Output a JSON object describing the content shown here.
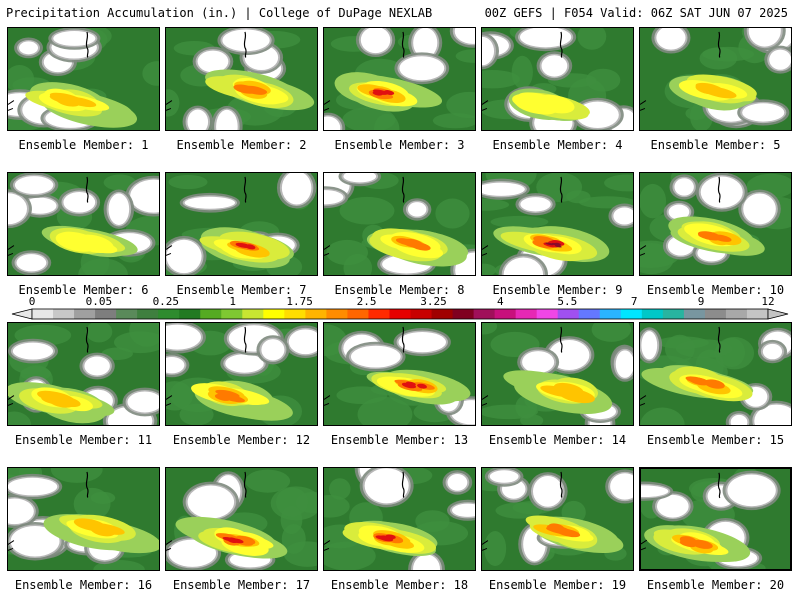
{
  "header": {
    "left": "Precipitation Accumulation (in.) | College of DuPage NEXLAB",
    "right": "00Z GEFS | F054 Valid: 06Z SAT JUN 07 2025"
  },
  "member_label_prefix": "Ensemble Member: ",
  "members": [
    {
      "id": "1",
      "intensity": 2
    },
    {
      "id": "2",
      "intensity": 3
    },
    {
      "id": "3",
      "intensity": 4
    },
    {
      "id": "4",
      "intensity": 1
    },
    {
      "id": "5",
      "intensity": 2
    },
    {
      "id": "6",
      "intensity": 1
    },
    {
      "id": "7",
      "intensity": 4
    },
    {
      "id": "8",
      "intensity": 3
    },
    {
      "id": "9",
      "intensity": 5
    },
    {
      "id": "10",
      "intensity": 3
    },
    {
      "id": "11",
      "intensity": 2
    },
    {
      "id": "12",
      "intensity": 3
    },
    {
      "id": "13",
      "intensity": 4
    },
    {
      "id": "14",
      "intensity": 2
    },
    {
      "id": "15",
      "intensity": 3
    },
    {
      "id": "16",
      "intensity": 2
    },
    {
      "id": "17",
      "intensity": 4
    },
    {
      "id": "18",
      "intensity": 4
    },
    {
      "id": "19",
      "intensity": 3
    },
    {
      "id": "20",
      "intensity": 3
    }
  ],
  "selected_member": "20",
  "colorbar": {
    "ticks": [
      "0",
      "0.05",
      "0.25",
      "1",
      "1.75",
      "2.5",
      "3.25",
      "4",
      "5.5",
      "7",
      "9",
      "12"
    ],
    "colors": [
      "#e8e8e8",
      "#c8c8c8",
      "#a0a0a0",
      "#7e7e7e",
      "#5a8a5a",
      "#3f7f3f",
      "#2e8b2e",
      "#227a22",
      "#55aa22",
      "#7fc832",
      "#c8e632",
      "#ffff00",
      "#ffdd00",
      "#ffb400",
      "#ff8c00",
      "#ff6600",
      "#ff2a00",
      "#e60000",
      "#c80000",
      "#a00000",
      "#800020",
      "#a0105a",
      "#c8107c",
      "#e628b4",
      "#f046e6",
      "#a050f0",
      "#6478ff",
      "#2ab4ff",
      "#00e6ff",
      "#00c8c8",
      "#28b4a0",
      "#7896a0",
      "#8c8c8c",
      "#a8a8a8",
      "#c4c4c4"
    ]
  }
}
